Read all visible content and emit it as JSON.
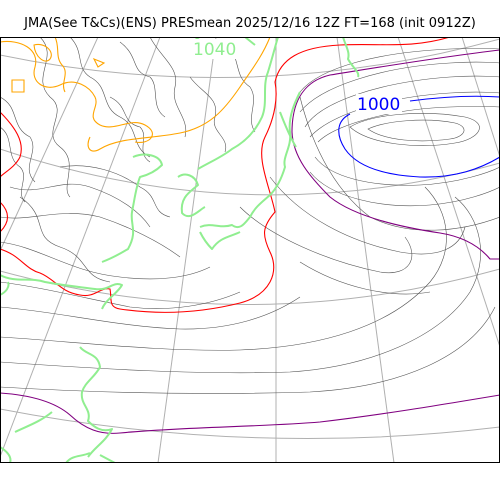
{
  "title": "JMA(See T&Cs)(ENS) PRESmean 2025/12/16 12Z FT=168 (init 0912Z)",
  "contour_labels": {
    "high": "1040",
    "low": "1000"
  },
  "colors": {
    "coastline": "#90ee90",
    "graticule": "#b0b0b0",
    "isobar": "#555555",
    "isobar_1040": "#ffa500",
    "isobar_1030": "#ff0000",
    "isobar_1020": "#800080",
    "isobar_1000": "#0000ff",
    "frame": "#000000"
  }
}
